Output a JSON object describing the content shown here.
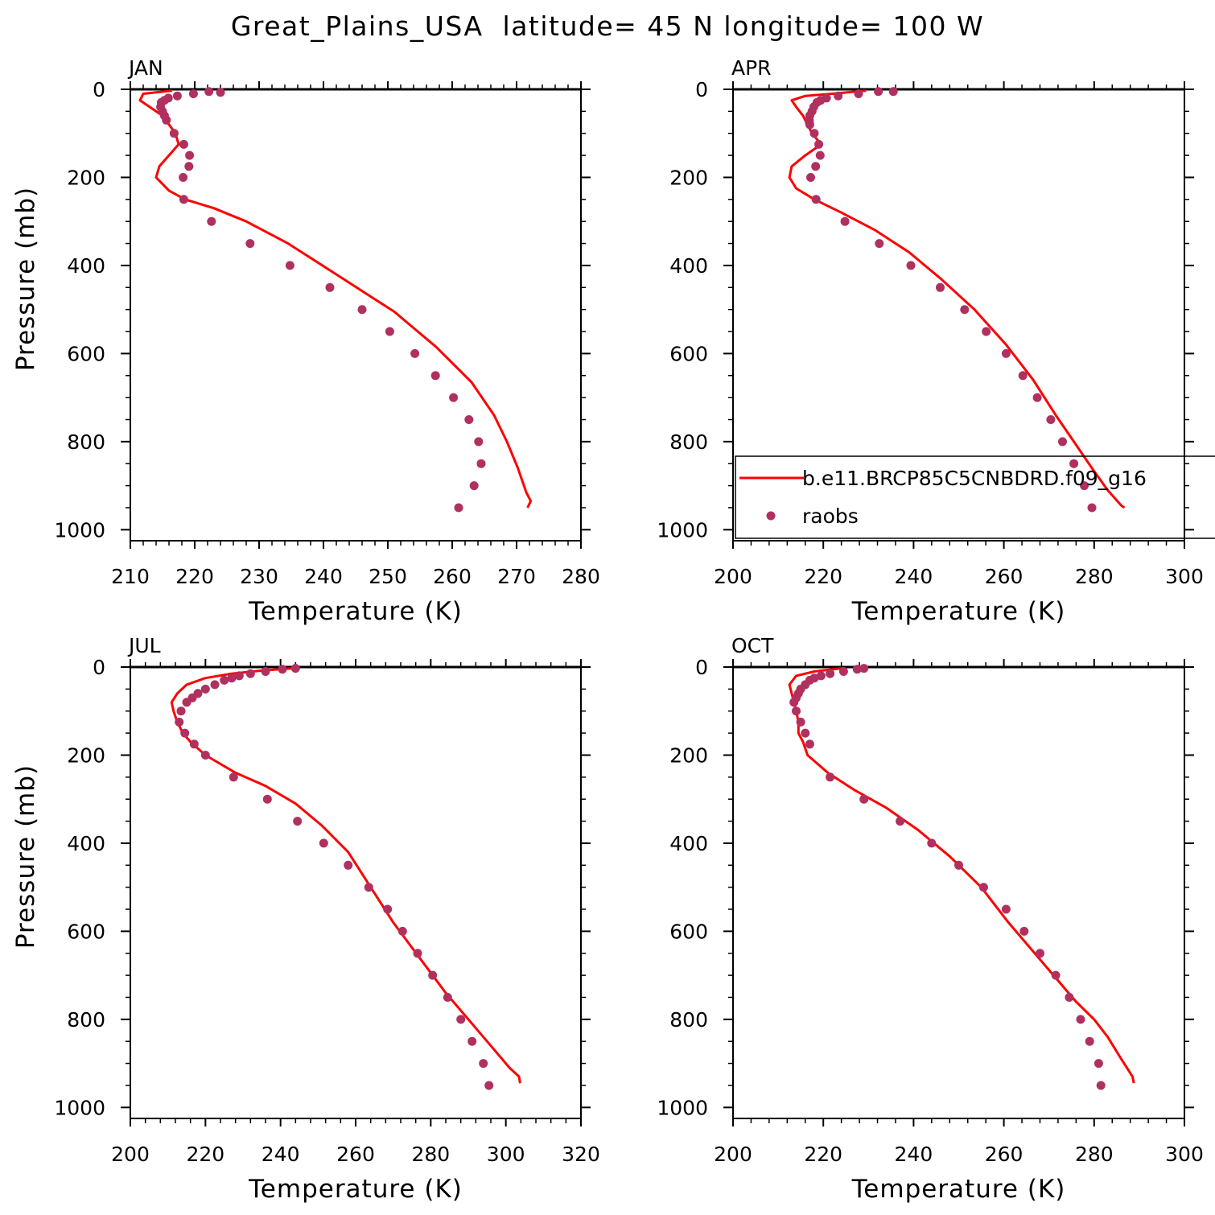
{
  "title": "Great_Plains_USA  latitude= 45 N longitude= 100 W",
  "colors": {
    "model": "#ff0000",
    "obs": "#b03060",
    "axes": "#000000"
  },
  "legend": {
    "panel": 1,
    "model_label": "b.e11.BRCP85C5CNBDRD.f09_g16",
    "obs_label": "raobs",
    "placement": "lower-right of APR panel"
  },
  "chart_data": [
    {
      "type": "line",
      "panel_title": "JAN",
      "xlabel": "Temperature (K)",
      "ylabel": "Pressure (mb)",
      "xlim": [
        210,
        280
      ],
      "xticks": [
        210,
        220,
        230,
        240,
        250,
        260,
        270,
        280
      ],
      "ylim": [
        1025,
        0
      ],
      "yticks": [
        0,
        200,
        400,
        600,
        800,
        1000
      ],
      "series": [
        {
          "name": "b.e11.BRCP85C5CNBDRD.f09_g16",
          "kind": "line",
          "x": [
            216.5,
            212.0,
            211.5,
            213.0,
            215.0,
            216.0,
            217.0,
            217.5,
            216.0,
            214.5,
            214.0,
            216.0,
            218.5,
            223.0,
            228.0,
            234.5,
            242.5,
            251.0,
            257.5,
            263.0,
            266.5,
            268.5,
            270.2,
            271.5,
            272.2,
            271.7
          ],
          "y": [
            3,
            10,
            25,
            40,
            60,
            80,
            100,
            125,
            150,
            175,
            200,
            230,
            250,
            270,
            300,
            350,
            425,
            505,
            585,
            665,
            740,
            800,
            860,
            915,
            935,
            950
          ]
        },
        {
          "name": "raobs",
          "kind": "points",
          "x": [
            224.0,
            222.2,
            219.8,
            217.3,
            215.9,
            215.3,
            214.8,
            214.7,
            215.0,
            215.3,
            215.6,
            216.8,
            218.3,
            219.2,
            219.1,
            218.2,
            218.3,
            222.6,
            228.6,
            234.8,
            241.0,
            246.0,
            250.3,
            254.2,
            257.4,
            260.2,
            262.6,
            264.1,
            264.5,
            263.4,
            261.0
          ],
          "y": [
            7,
            5,
            10,
            15,
            20,
            25,
            30,
            40,
            50,
            60,
            70,
            100,
            125,
            150,
            175,
            200,
            250,
            300,
            350,
            400,
            450,
            500,
            550,
            600,
            650,
            700,
            750,
            800,
            850,
            900,
            950
          ]
        }
      ]
    },
    {
      "type": "line",
      "panel_title": "APR",
      "xlabel": "Temperature (K)",
      "ylabel": "",
      "xlim": [
        200,
        300
      ],
      "xticks": [
        200,
        220,
        240,
        260,
        280,
        300
      ],
      "ylim": [
        1025,
        0
      ],
      "yticks": [
        0,
        200,
        400,
        600,
        800,
        1000
      ],
      "series": [
        {
          "name": "b.e11.BRCP85C5CNBDRD.f09_g16",
          "kind": "line",
          "x": [
            229.5,
            222.0,
            216.0,
            213.0,
            214.0,
            215.5,
            216.5,
            217.5,
            219.5,
            216.0,
            213.0,
            212.5,
            214.0,
            218.0,
            224.0,
            231.5,
            239.0,
            246.0,
            253.5,
            260.5,
            266.5,
            271.5,
            275.5,
            279.5,
            283.0,
            286.0,
            286.7
          ],
          "y": [
            3,
            10,
            15,
            25,
            40,
            60,
            80,
            100,
            125,
            150,
            175,
            200,
            225,
            250,
            280,
            320,
            370,
            430,
            500,
            580,
            660,
            740,
            800,
            860,
            910,
            945,
            950
          ]
        },
        {
          "name": "raobs",
          "kind": "points",
          "x": [
            235.5,
            232.2,
            227.8,
            223.3,
            220.7,
            219.4,
            218.6,
            217.9,
            217.5,
            217.0,
            216.9,
            216.9,
            217.0,
            218.0,
            219.0,
            219.3,
            218.3,
            217.2,
            218.4,
            224.8,
            232.4,
            239.4,
            245.9,
            251.3,
            256.1,
            260.5,
            264.2,
            267.4,
            270.4,
            273.0,
            275.5,
            277.8,
            279.5
          ],
          "y": [
            5,
            5,
            10,
            15,
            20,
            25,
            30,
            40,
            50,
            60,
            70,
            75,
            80,
            100,
            125,
            150,
            175,
            200,
            250,
            300,
            350,
            400,
            450,
            500,
            550,
            600,
            650,
            700,
            750,
            800,
            850,
            900,
            950
          ]
        }
      ]
    },
    {
      "type": "line",
      "panel_title": "JUL",
      "xlabel": "Temperature (K)",
      "ylabel": "Pressure (mb)",
      "xlim": [
        200,
        320
      ],
      "xticks": [
        200,
        220,
        240,
        260,
        280,
        300,
        320
      ],
      "ylim": [
        1025,
        0
      ],
      "yticks": [
        0,
        200,
        400,
        600,
        800,
        1000
      ],
      "series": [
        {
          "name": "b.e11.BRCP85C5CNBDRD.f09_g16",
          "kind": "line",
          "x": [
            243.0,
            235.0,
            227.0,
            220.0,
            215.0,
            212.5,
            211.0,
            211.5,
            212.5,
            214.0,
            216.0,
            220.0,
            228.0,
            236.0,
            244.0,
            251.0,
            258.0,
            264.0,
            270.0,
            277.0,
            284.0,
            291.0,
            297.0,
            301.0,
            303.5,
            303.8
          ],
          "y": [
            3,
            8,
            15,
            25,
            40,
            60,
            80,
            100,
            125,
            150,
            170,
            200,
            240,
            270,
            310,
            360,
            420,
            500,
            580,
            660,
            740,
            810,
            870,
            910,
            930,
            945
          ]
        },
        {
          "name": "raobs",
          "kind": "points",
          "x": [
            244.0,
            240.5,
            236.0,
            232.0,
            229.0,
            227.0,
            225.0,
            222.5,
            220.0,
            218.0,
            216.5,
            215.0,
            213.5,
            213.0,
            214.5,
            217.0,
            220.0,
            227.5,
            236.5,
            244.5,
            251.5,
            258.0,
            263.5,
            268.5,
            272.5,
            276.5,
            280.5,
            284.5,
            288.0,
            291.0,
            294.0,
            295.5
          ],
          "y": [
            3,
            5,
            10,
            15,
            20,
            25,
            30,
            40,
            50,
            60,
            70,
            80,
            100,
            125,
            150,
            175,
            200,
            250,
            300,
            350,
            400,
            450,
            500,
            550,
            600,
            650,
            700,
            750,
            800,
            850,
            900,
            950
          ]
        }
      ]
    },
    {
      "type": "line",
      "panel_title": "OCT",
      "xlabel": "Temperature (K)",
      "ylabel": "",
      "xlim": [
        200,
        300
      ],
      "xticks": [
        200,
        220,
        240,
        260,
        280,
        300
      ],
      "ylim": [
        1025,
        0
      ],
      "yticks": [
        0,
        200,
        400,
        600,
        800,
        1000
      ],
      "series": [
        {
          "name": "b.e11.BRCP85C5CNBDRD.f09_g16",
          "kind": "line",
          "x": [
            224.0,
            218.0,
            214.0,
            212.5,
            213.0,
            213.5,
            214.0,
            214.5,
            214.5,
            215.0,
            215.5,
            216.5,
            221.0,
            227.0,
            234.0,
            241.0,
            248.0,
            255.0,
            261.0,
            266.0,
            271.0,
            276.0,
            280.0,
            283.0,
            286.0,
            288.5,
            288.8
          ],
          "y": [
            3,
            10,
            20,
            40,
            60,
            80,
            100,
            125,
            150,
            160,
            170,
            200,
            240,
            280,
            320,
            370,
            430,
            500,
            580,
            640,
            700,
            760,
            800,
            840,
            890,
            930,
            945
          ]
        },
        {
          "name": "raobs",
          "kind": "points",
          "x": [
            229.0,
            227.5,
            224.5,
            221.5,
            219.5,
            218.0,
            217.0,
            216.0,
            215.0,
            214.5,
            214.0,
            213.5,
            214.0,
            215.0,
            216.0,
            217.0,
            221.5,
            229.0,
            237.0,
            244.0,
            250.0,
            255.5,
            260.5,
            264.5,
            268.0,
            271.5,
            274.5,
            277.0,
            279.0,
            281.0,
            281.5
          ],
          "y": [
            3,
            5,
            10,
            15,
            20,
            25,
            30,
            40,
            50,
            60,
            70,
            80,
            100,
            125,
            150,
            175,
            250,
            300,
            350,
            400,
            450,
            500,
            550,
            600,
            650,
            700,
            750,
            800,
            850,
            900,
            950
          ]
        }
      ]
    }
  ]
}
